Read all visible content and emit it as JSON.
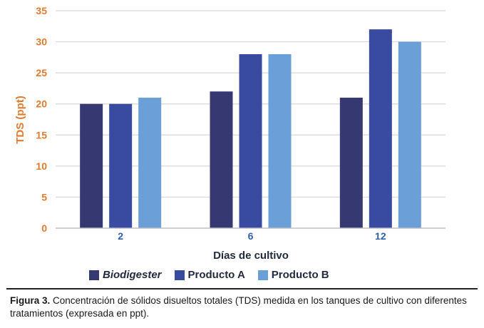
{
  "chart_data": {
    "type": "bar",
    "title": "",
    "xlabel": "Días de cultivo",
    "ylabel": "TDS (ppt)",
    "categories": [
      "2",
      "6",
      "12"
    ],
    "ylim": [
      0,
      35
    ],
    "yticks": [
      0,
      5,
      10,
      15,
      20,
      25,
      30,
      35
    ],
    "grid": true,
    "legend_position": "bottom",
    "series": [
      {
        "name": "Biodigester",
        "color": "#363872",
        "values": [
          20,
          22,
          21
        ]
      },
      {
        "name": "Producto A",
        "color": "#394ba0",
        "values": [
          20,
          28,
          32
        ]
      },
      {
        "name": "Producto B",
        "color": "#6b9fd8",
        "values": [
          21,
          28,
          30
        ]
      }
    ]
  },
  "colors": {
    "axis_label": "#e07a2e",
    "tick_label": "#e07a2e",
    "category_label": "#2e5fa8",
    "xlabel": "#222b3d",
    "grid": "#d8d8d8"
  },
  "caption": {
    "label": "Figura 3.",
    "text": " Concentración de sólidos disueltos totales (TDS) medida en los tanques de cultivo con diferentes tratamientos (expresada en ppt)."
  }
}
